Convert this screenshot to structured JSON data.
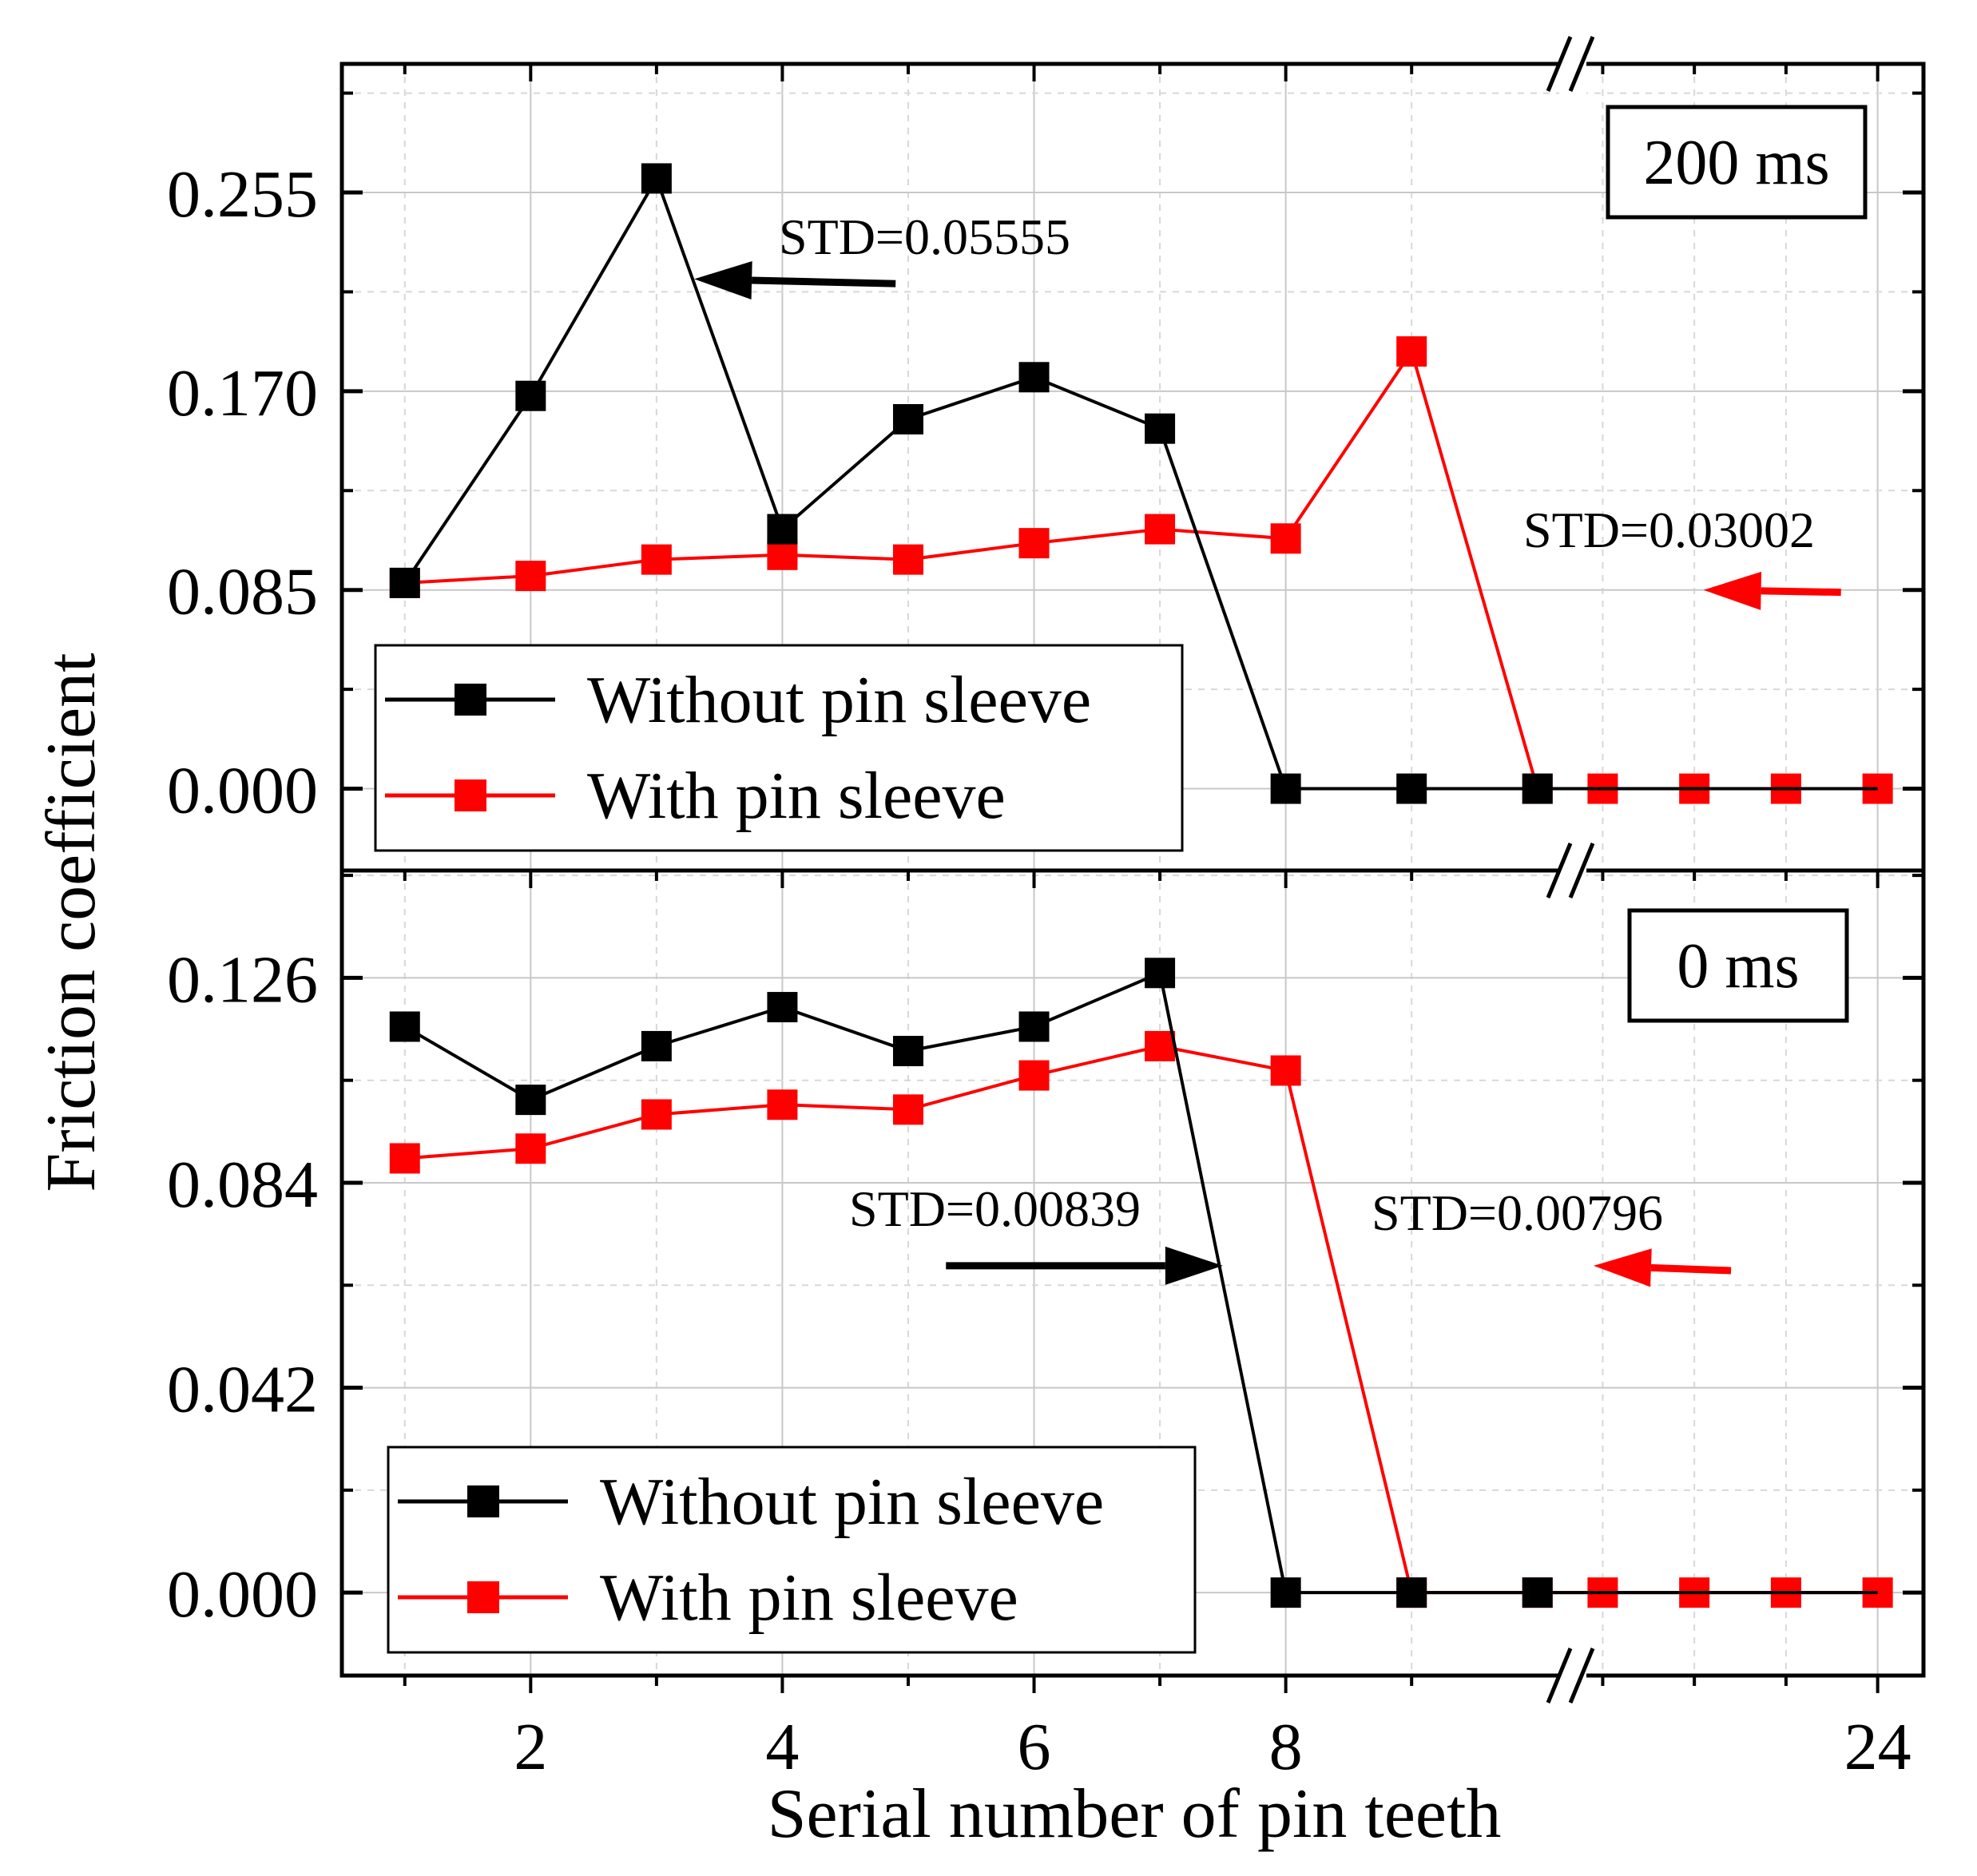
{
  "chart_data": {
    "type": "line",
    "xlabel": "Serial number of pin teeth",
    "ylabel": "Friction coefficient",
    "x_tick_labels": [
      "2",
      "4",
      "6",
      "8",
      "24"
    ],
    "x_break": "between 10 and 21",
    "x_ranges": [
      [
        0.5,
        10.3
      ],
      [
        20.7,
        24.5
      ]
    ],
    "grid": true,
    "panels": [
      {
        "id": "top",
        "time_label": "200 ms",
        "ylim": [
          -0.035,
          0.31
        ],
        "y_ticks": [
          0.0,
          0.085,
          0.17,
          0.255
        ],
        "y_tick_labels": [
          "0.000",
          "0.085",
          "0.170",
          "0.255"
        ],
        "legend_location": "lower-left",
        "series": [
          {
            "name": "Without pin sleeve",
            "color": "#000000",
            "x": [
              1,
              2,
              3,
              4,
              5,
              6,
              7,
              8,
              9,
              10,
              21,
              22,
              23,
              24
            ],
            "y": [
              0.088,
              0.168,
              0.261,
              0.111,
              0.158,
              0.176,
              0.154,
              0.0,
              0.0,
              0.0,
              0.0,
              0.0,
              0.0,
              0.0
            ]
          },
          {
            "name": "With pin sleeve",
            "color": "#ff0000",
            "x": [
              1,
              2,
              3,
              4,
              5,
              6,
              7,
              8,
              9,
              10,
              21,
              22,
              23,
              24
            ],
            "y": [
              0.088,
              0.091,
              0.098,
              0.1,
              0.098,
              0.105,
              0.111,
              0.107,
              0.187,
              0.0,
              0.0,
              0.0,
              0.0,
              0.0
            ]
          }
        ],
        "annotations": [
          {
            "text": "STD=0.05555",
            "color": "#000000",
            "arrow_from": [
              4.9,
              0.216
            ],
            "arrow_to": [
              3.3,
              0.218
            ]
          },
          {
            "text": "STD=0.03002",
            "color": "#ff0000",
            "arrow_from": [
              23.6,
              0.084
            ],
            "arrow_to": [
              22.1,
              0.085
            ]
          }
        ]
      },
      {
        "id": "bottom",
        "time_label": "0 ms",
        "ylim": [
          -0.017,
          0.148
        ],
        "y_ticks": [
          0.0,
          0.042,
          0.084,
          0.126
        ],
        "y_tick_labels": [
          "0.000",
          "0.042",
          "0.084",
          "0.126"
        ],
        "legend_location": "lower-left",
        "series": [
          {
            "name": "Without pin sleeve",
            "color": "#000000",
            "x": [
              1,
              2,
              3,
              4,
              5,
              6,
              7,
              8,
              9,
              10,
              21,
              22,
              23,
              24
            ],
            "y": [
              0.116,
              0.101,
              0.112,
              0.12,
              0.111,
              0.116,
              0.127,
              0.0,
              0.0,
              0.0,
              0.0,
              0.0,
              0.0,
              0.0
            ]
          },
          {
            "name": "With pin sleeve",
            "color": "#ff0000",
            "x": [
              1,
              2,
              3,
              4,
              5,
              6,
              7,
              8,
              9,
              10,
              21,
              22,
              23,
              24
            ],
            "y": [
              0.089,
              0.091,
              0.098,
              0.1,
              0.099,
              0.106,
              0.112,
              0.107,
              0.0,
              0.0,
              0.0,
              0.0,
              0.0,
              0.0
            ]
          }
        ],
        "annotations": [
          {
            "text": "STD=0.00839",
            "color": "#000000",
            "arrow_from": [
              5.3,
              0.067
            ],
            "arrow_to": [
              7.5,
              0.067
            ]
          },
          {
            "text": "STD=0.00796",
            "color": "#ff0000",
            "arrow_from": [
              22.4,
              0.066
            ],
            "arrow_to": [
              20.9,
              0.067
            ]
          }
        ]
      }
    ]
  }
}
